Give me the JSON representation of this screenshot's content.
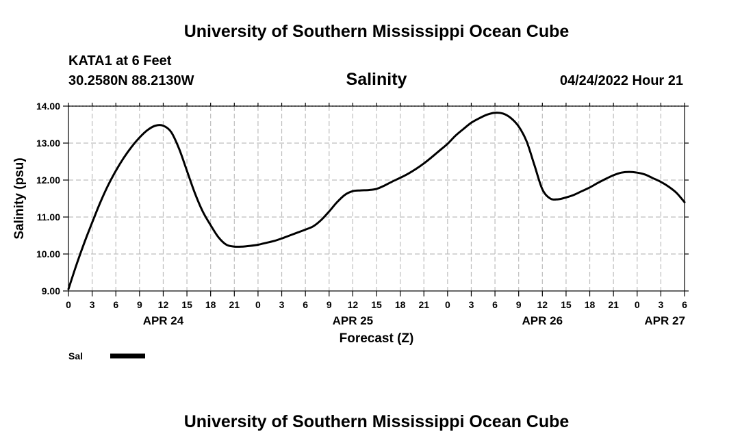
{
  "chart_data": {
    "type": "line",
    "title": "University of Southern Mississippi Ocean Cube",
    "footer_title": "University of Southern Mississippi Ocean Cube",
    "station": "KATA1 at 6 Feet",
    "location": "30.2580N  88.2130W",
    "subtitle": "Salinity",
    "timestamp": "04/24/2022 Hour 21",
    "xlabel": "Forecast (Z)",
    "ylabel": "Salinity (psu)",
    "ylim": [
      9,
      14
    ],
    "xlim": [
      0,
      78
    ],
    "y_ticks": [
      {
        "value": 9,
        "label": "9.00"
      },
      {
        "value": 10,
        "label": "10.00"
      },
      {
        "value": 11,
        "label": "11.00"
      },
      {
        "value": 12,
        "label": "12.00"
      },
      {
        "value": 13,
        "label": "13.00"
      },
      {
        "value": 14,
        "label": "14.00"
      }
    ],
    "x_ticks": [
      {
        "value": 0,
        "label": "0"
      },
      {
        "value": 3,
        "label": "3"
      },
      {
        "value": 6,
        "label": "6"
      },
      {
        "value": 9,
        "label": "9"
      },
      {
        "value": 12,
        "label": "12"
      },
      {
        "value": 15,
        "label": "15"
      },
      {
        "value": 18,
        "label": "18"
      },
      {
        "value": 21,
        "label": "21"
      },
      {
        "value": 24,
        "label": "0"
      },
      {
        "value": 27,
        "label": "3"
      },
      {
        "value": 30,
        "label": "6"
      },
      {
        "value": 33,
        "label": "9"
      },
      {
        "value": 36,
        "label": "12"
      },
      {
        "value": 39,
        "label": "15"
      },
      {
        "value": 42,
        "label": "18"
      },
      {
        "value": 45,
        "label": "21"
      },
      {
        "value": 48,
        "label": "0"
      },
      {
        "value": 51,
        "label": "3"
      },
      {
        "value": 54,
        "label": "6"
      },
      {
        "value": 57,
        "label": "9"
      },
      {
        "value": 60,
        "label": "12"
      },
      {
        "value": 63,
        "label": "15"
      },
      {
        "value": 66,
        "label": "18"
      },
      {
        "value": 69,
        "label": "21"
      },
      {
        "value": 72,
        "label": "0"
      },
      {
        "value": 75,
        "label": "3"
      },
      {
        "value": 78,
        "label": "6"
      }
    ],
    "day_labels": [
      {
        "value": 12,
        "label": "APR 24"
      },
      {
        "value": 36,
        "label": "APR 25"
      },
      {
        "value": 60,
        "label": "APR 26"
      },
      {
        "value": 75.5,
        "label": "APR 27"
      }
    ],
    "series": [
      {
        "name": "Sal",
        "color": "#000000",
        "x": [
          0,
          1,
          2,
          3,
          4,
          5,
          6,
          7,
          8,
          9,
          10,
          11,
          12,
          13,
          14,
          15,
          16,
          17,
          18,
          19,
          20,
          21,
          22,
          23,
          24,
          25,
          26,
          27,
          28,
          29,
          30,
          31,
          32,
          33,
          34,
          35,
          36,
          37,
          38,
          39,
          40,
          41,
          42,
          43,
          44,
          45,
          46,
          47,
          48,
          49,
          50,
          51,
          52,
          53,
          54,
          55,
          56,
          57,
          58,
          59,
          60,
          61,
          62,
          63,
          64,
          65,
          66,
          67,
          68,
          69,
          70,
          71,
          72,
          73,
          74,
          75,
          76,
          77,
          78
        ],
        "values": [
          9.05,
          9.7,
          10.3,
          10.85,
          11.38,
          11.85,
          12.25,
          12.6,
          12.9,
          13.15,
          13.35,
          13.47,
          13.47,
          13.3,
          12.85,
          12.25,
          11.65,
          11.15,
          10.78,
          10.45,
          10.25,
          10.2,
          10.2,
          10.22,
          10.25,
          10.3,
          10.35,
          10.42,
          10.5,
          10.58,
          10.66,
          10.75,
          10.92,
          11.15,
          11.4,
          11.6,
          11.7,
          11.72,
          11.73,
          11.76,
          11.85,
          11.96,
          12.06,
          12.17,
          12.3,
          12.45,
          12.62,
          12.8,
          12.98,
          13.2,
          13.38,
          13.55,
          13.67,
          13.77,
          13.82,
          13.8,
          13.68,
          13.45,
          13.05,
          12.4,
          11.75,
          11.5,
          11.48,
          11.53,
          11.6,
          11.7,
          11.8,
          11.92,
          12.03,
          12.13,
          12.2,
          12.22,
          12.2,
          12.15,
          12.05,
          11.95,
          11.82,
          11.65,
          11.4
        ]
      }
    ],
    "legend": {
      "label": "Sal",
      "placement": "bottom-left"
    }
  }
}
